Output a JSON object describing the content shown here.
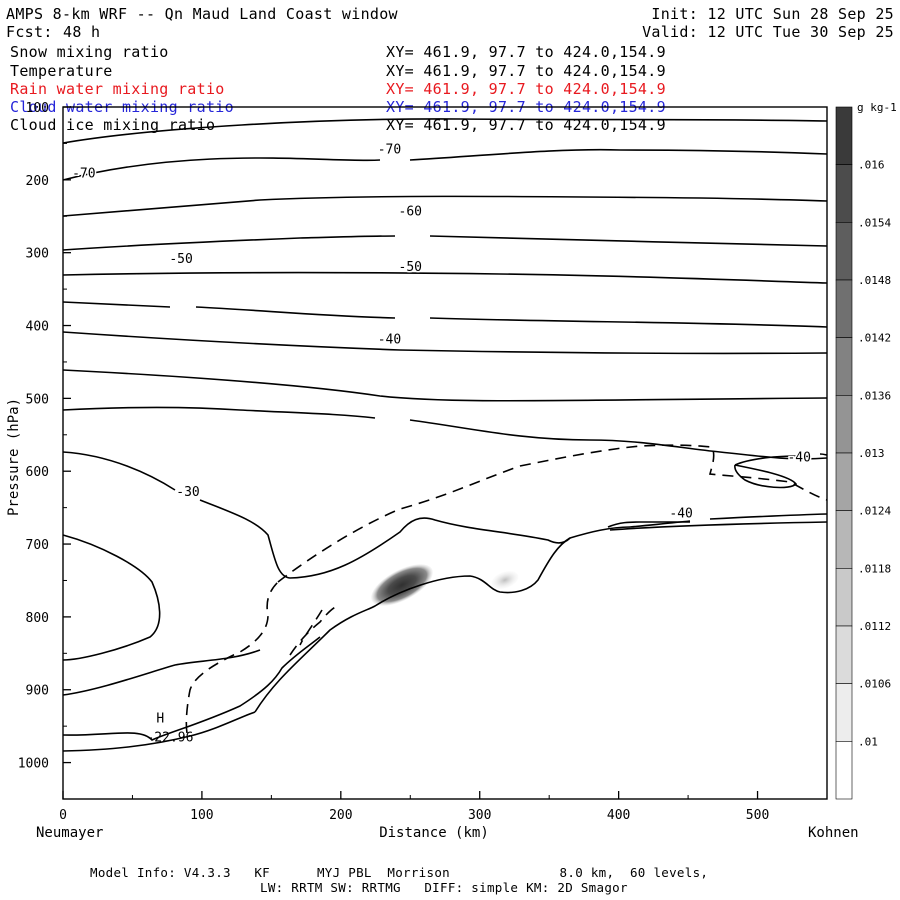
{
  "header": {
    "title": "AMPS 8-km WRF -- Qn Maud Land Coast window",
    "fcst_label": "Fcst:",
    "fcst_value": "48 h",
    "init": "Init: 12 UTC Sun 28 Sep 25",
    "valid": "Valid: 12 UTC Tue 30 Sep 25"
  },
  "fields": [
    {
      "name": "Snow mixing ratio",
      "xy": "XY= 461.9, 97.7 to 424.0,154.9",
      "color": "#000000"
    },
    {
      "name": "Temperature",
      "xy": "XY= 461.9, 97.7 to 424.0,154.9",
      "color": "#000000"
    },
    {
      "name": "Rain water mixing ratio",
      "xy": "XY= 461.9, 97.7 to 424.0,154.9",
      "color": "#e8191f"
    },
    {
      "name": "Cloud water mixing ratio",
      "xy": "XY= 461.9, 97.7 to 424.0,154.9",
      "color": "#2626d9"
    },
    {
      "name": "Cloud ice mixing ratio",
      "xy": "XY= 461.9, 97.7 to 424.0,154.9",
      "color": "#000000"
    }
  ],
  "chart_data": {
    "type": "cross-section contour",
    "xlabel": "Distance (km)",
    "ylabel": "Pressure (hPa)",
    "xlim": [
      0,
      550
    ],
    "ylim": [
      1050,
      100
    ],
    "x_ticks": [
      0,
      100,
      200,
      300,
      400,
      500
    ],
    "y_ticks": [
      100,
      200,
      300,
      400,
      500,
      600,
      700,
      800,
      900,
      1000
    ],
    "x_endpoints": {
      "left": "Neumayer",
      "right": "Kohnen"
    },
    "contour_labels": [
      {
        "text": "-70",
        "x": 15,
        "p": 190
      },
      {
        "text": "-70",
        "x": 235,
        "p": 157
      },
      {
        "text": "-60",
        "x": 250,
        "p": 242
      },
      {
        "text": "-50",
        "x": 85,
        "p": 307
      },
      {
        "text": "-50",
        "x": 250,
        "p": 318
      },
      {
        "text": "-40",
        "x": 235,
        "p": 418
      },
      {
        "text": "-40",
        "x": 530,
        "p": 580
      },
      {
        "text": "-40",
        "x": 445,
        "p": 657
      },
      {
        "text": "-30",
        "x": 90,
        "p": 627
      }
    ],
    "annotations": [
      {
        "text": "H",
        "x": 70,
        "p": 938
      },
      {
        "text": "-22.96",
        "x": 77,
        "p": 964
      }
    ],
    "colorbar": {
      "units": "g kg-1",
      "labels": [
        ".016",
        ".0154",
        ".0148",
        ".0142",
        ".0136",
        ".013",
        ".0124",
        ".0118",
        ".0112",
        ".0106",
        ".01"
      ]
    },
    "shaded_features": [
      {
        "name": "snow maximum",
        "x": 245,
        "p": 765,
        "value": 0.016
      },
      {
        "name": "secondary snow",
        "x": 318,
        "p": 765,
        "value": 0.0112
      }
    ]
  },
  "footer": {
    "model_info": "Model Info: V4.3.3   KF      MYJ PBL  Morrison              8.0 km,  60 levels,",
    "physics": "LW: RRTM SW: RRTMG   DIFF: simple KM: 2D Smagor"
  }
}
